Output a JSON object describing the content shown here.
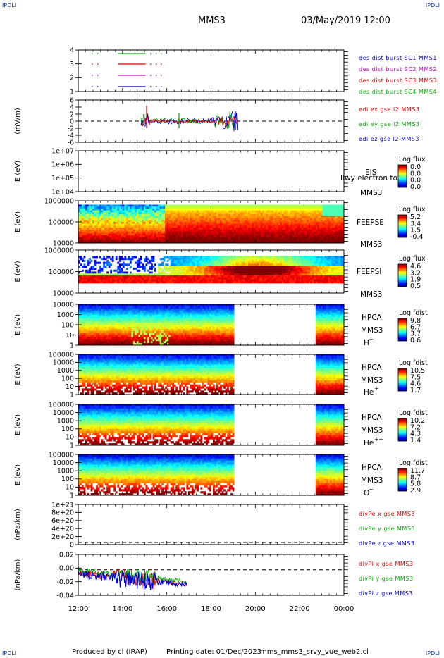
{
  "corners": {
    "tl": "IPDLI",
    "tr": "IPDLI",
    "bl": "IPDLI",
    "br": "IPDLI"
  },
  "header": {
    "mission": "MMS3",
    "date": "03/May/2019 12:00"
  },
  "footer": {
    "produced": "Produced by cl (IRAP)",
    "printing": "Printing date: 01/Dec/2023",
    "script": "mms_mms3_srvy_vue_web2.cl"
  },
  "time_axis": {
    "ticks": [
      "12:00",
      "14:00",
      "16:00",
      "18:00",
      "20:00",
      "22:00",
      "00:00"
    ]
  },
  "colors": {
    "mms1": "#0000cc",
    "mms2": "#cc00cc",
    "mms3": "#dd0000",
    "mms4": "#00bb00",
    "axis": "#000000"
  },
  "chart_data": [
    {
      "id": "p1",
      "type": "line",
      "yticks": [
        "4",
        "3",
        "2",
        "1"
      ],
      "legend": [
        {
          "label": "des dist burst SC1 MMS1",
          "color": "#0000cc"
        },
        {
          "label": "des dist burst SC2 MMS2",
          "color": "#cc00cc"
        },
        {
          "label": "des dist burst SC3 MMS3",
          "color": "#dd0000"
        },
        {
          "label": "des dist burst SC4 MMS4",
          "color": "#00bb00"
        }
      ]
    },
    {
      "id": "p2",
      "type": "line",
      "ylabel": "(mV/m)",
      "yticks": [
        "6",
        "4",
        "2",
        "0",
        "-2",
        "-4",
        "-6"
      ],
      "ylim": [
        -6,
        6
      ],
      "legend": [
        {
          "label": "edi ex gse l2 MMS3",
          "color": "#dd0000"
        },
        {
          "label": "edi ey gse l2 MMS3",
          "color": "#00aa00"
        },
        {
          "label": "edi ez gse l2 MMS3",
          "color": "#0000cc"
        }
      ]
    },
    {
      "id": "p3",
      "type": "heatmap",
      "ylabel": "E (eV)",
      "yticks": [
        "1e+07",
        "1e+06",
        "1e+05",
        "1e+04"
      ],
      "name": "EIS",
      "sc": "MMS3",
      "overlay": "Ilwy electron to",
      "cbtitle": "Log flux",
      "cbticks": [
        "0.0",
        "0.0",
        "0.0",
        "0.0"
      ]
    },
    {
      "id": "p4",
      "type": "heatmap",
      "ylabel": "E (eV)",
      "yticks": [
        "1000000",
        "100000",
        "10000"
      ],
      "name": "FEEPSE",
      "sc": "MMS3",
      "cbtitle": "Log flux",
      "cbticks": [
        "5.2",
        "3.4",
        "1.5",
        "-0.4"
      ]
    },
    {
      "id": "p5",
      "type": "heatmap",
      "ylabel": "E (eV)",
      "yticks": [
        "1000000",
        "100000",
        "10000"
      ],
      "name": "FEEPSI",
      "sc": "MMS3",
      "cbtitle": "Log flux",
      "cbticks": [
        "4.6",
        "3.2",
        "1.9",
        "0.5"
      ]
    },
    {
      "id": "p6",
      "type": "heatmap",
      "ylabel": "E (eV)",
      "yticks": [
        "10000",
        "1000",
        "100",
        "10",
        "1"
      ],
      "name": "HPCA",
      "sc": "MMS3",
      "species": "H",
      "sup": "+",
      "cbtitle": "Log fdist",
      "cbticks": [
        "9.8",
        "6.7",
        "3.7",
        "0.6"
      ]
    },
    {
      "id": "p7",
      "type": "heatmap",
      "ylabel": "E (eV)",
      "yticks": [
        "100000",
        "10000",
        "1000",
        "100",
        "10",
        "1"
      ],
      "name": "HPCA",
      "sc": "MMS3",
      "species": "He",
      "sup": "+",
      "cbtitle": "Log fdist",
      "cbticks": [
        "10.5",
        "7.5",
        "4.6",
        "1.7"
      ]
    },
    {
      "id": "p8",
      "type": "heatmap",
      "ylabel": "E (eV)",
      "yticks": [
        "100000",
        "10000",
        "1000",
        "100",
        "10",
        "1"
      ],
      "name": "HPCA",
      "sc": "MMS3",
      "species": "He",
      "sup": "++",
      "cbtitle": "Log fdist",
      "cbticks": [
        "10.2",
        "7.2",
        "4.3",
        "1.4"
      ]
    },
    {
      "id": "p9",
      "type": "heatmap",
      "ylabel": "E (eV)",
      "yticks": [
        "100000",
        "10000",
        "1000",
        "100",
        "10",
        "1"
      ],
      "name": "HPCA",
      "sc": "MMS3",
      "species": "O",
      "sup": "+",
      "cbtitle": "Log fdist",
      "cbticks": [
        "11.7",
        "8.7",
        "5.8",
        "2.9"
      ]
    },
    {
      "id": "p10",
      "type": "line",
      "ylabel": "(nPa/km)",
      "yticks": [
        "1e+21",
        "8e+20",
        "6e+20",
        "4e+20",
        "2e+20",
        "0"
      ],
      "legend": [
        {
          "label": "divPe x gse MMS3",
          "color": "#dd0000"
        },
        {
          "label": "divPe y gse MMS3",
          "color": "#00aa00"
        },
        {
          "label": "divPe z gse MMS3",
          "color": "#0000cc"
        }
      ]
    },
    {
      "id": "p11",
      "type": "line",
      "ylabel": "(nPa/km)",
      "yticks": [
        "0.02",
        "0.00",
        "-0.02",
        "-0.04"
      ],
      "ylim": [
        -0.05,
        0.03
      ],
      "legend": [
        {
          "label": "divPi x gse MMS3",
          "color": "#dd0000"
        },
        {
          "label": "divPi y gse MMS3",
          "color": "#00aa00"
        },
        {
          "label": "divPi z gse MMS3",
          "color": "#0000cc"
        }
      ]
    }
  ]
}
